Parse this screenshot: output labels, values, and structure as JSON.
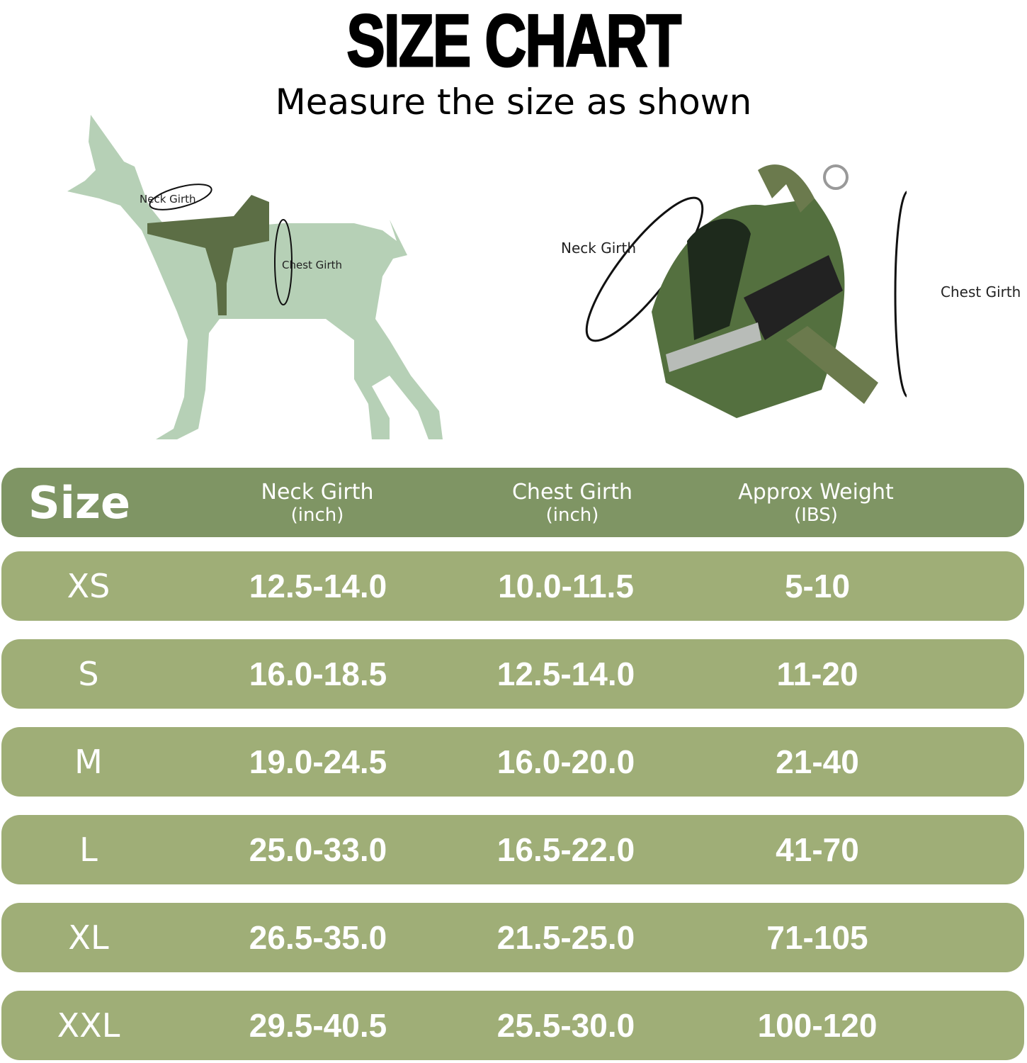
{
  "title": "SIZE CHART",
  "subtitle": "Measure the size as shown",
  "illustrations": {
    "dog": {
      "neck_label": "Neck Girth",
      "chest_label": "Chest Girth",
      "silhouette_color": "#b6d0b6"
    },
    "harness": {
      "neck_label": "Neck Girth",
      "chest_label": "Chest Girth",
      "harness_color": "#4e6b3a"
    }
  },
  "colors": {
    "header_bg": "#7f9564",
    "row_bg": "#9fae77",
    "text": "#ffffff"
  },
  "table": {
    "headers": [
      {
        "label": "Size",
        "unit": ""
      },
      {
        "label": "Neck Girth",
        "unit": "(inch)"
      },
      {
        "label": "Chest Girth",
        "unit": "(inch)"
      },
      {
        "label": "Approx Weight",
        "unit": "(IBS)"
      }
    ],
    "rows": [
      {
        "size": "XS",
        "neck": "12.5-14.0",
        "chest": "10.0-11.5",
        "weight": "5-10"
      },
      {
        "size": "S",
        "neck": "16.0-18.5",
        "chest": "12.5-14.0",
        "weight": "11-20"
      },
      {
        "size": "M",
        "neck": "19.0-24.5",
        "chest": "16.0-20.0",
        "weight": "21-40"
      },
      {
        "size": "L",
        "neck": "25.0-33.0",
        "chest": "16.5-22.0",
        "weight": "41-70"
      },
      {
        "size": "XL",
        "neck": "26.5-35.0",
        "chest": "21.5-25.0",
        "weight": "71-105"
      },
      {
        "size": "XXL",
        "neck": "29.5-40.5",
        "chest": "25.5-30.0",
        "weight": "100-120"
      }
    ]
  }
}
